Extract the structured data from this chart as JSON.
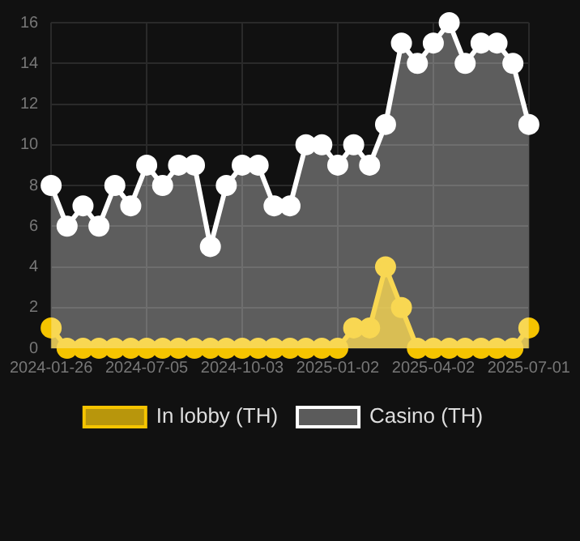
{
  "chart_data": {
    "type": "area",
    "categories": [
      "2024-01-26",
      null,
      null,
      null,
      null,
      null,
      "2024-07-05",
      null,
      null,
      null,
      null,
      null,
      "2024-10-03",
      null,
      null,
      null,
      null,
      null,
      "2025-01-02",
      null,
      null,
      null,
      null,
      null,
      "2025-04-02",
      null,
      null,
      null,
      null,
      null,
      "2025-07-01"
    ],
    "series": [
      {
        "name": "In lobby (TH)",
        "color": "#f5c400",
        "values": [
          1,
          0,
          0,
          0,
          0,
          0,
          0,
          0,
          0,
          0,
          0,
          0,
          0,
          0,
          0,
          0,
          0,
          0,
          0,
          1,
          1,
          4,
          2,
          0,
          0,
          0,
          0,
          0,
          0,
          0,
          1
        ]
      },
      {
        "name": "Casino (TH)",
        "color": "#ffffff",
        "values": [
          8,
          6,
          7,
          6,
          8,
          7,
          9,
          8,
          9,
          9,
          5,
          8,
          9,
          9,
          7,
          7,
          10,
          10,
          9,
          10,
          9,
          11,
          15,
          14,
          15,
          16,
          14,
          15,
          15,
          14,
          11
        ]
      }
    ],
    "ylim": [
      0,
      16
    ],
    "yticks": [
      0,
      2,
      4,
      6,
      8,
      10,
      12,
      14,
      16
    ],
    "grid": true,
    "legend": "bottom",
    "marker": "circle"
  }
}
